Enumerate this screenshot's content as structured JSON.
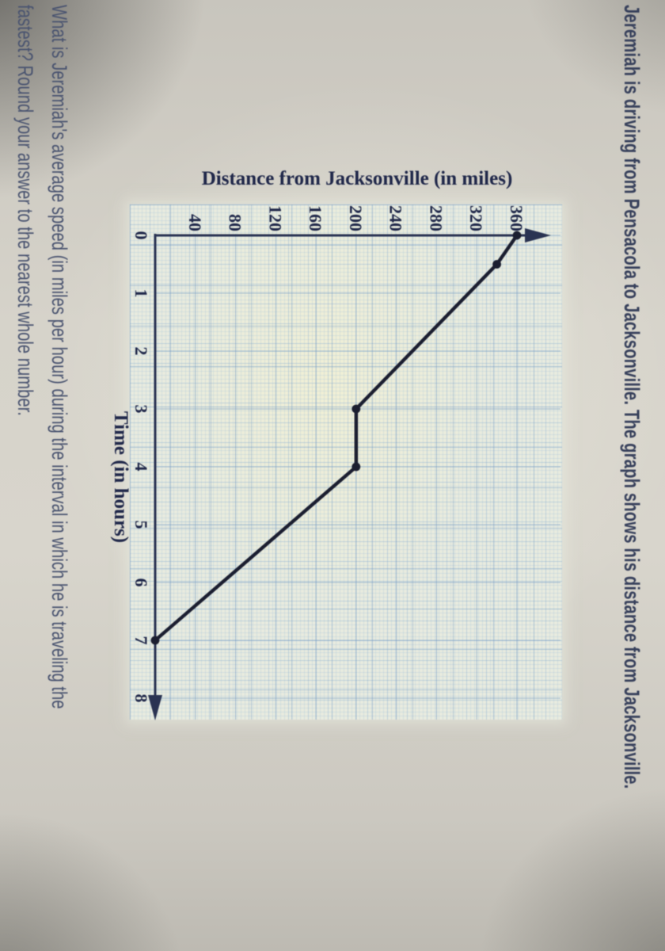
{
  "title": "Jeremiah is driving from Pensacola to Jacksonville. The graph shows his distance from Jacksonville.",
  "question": {
    "line1": "What is Jeremiah's average speed (in miles per hour) during the interval in which he is traveling the",
    "line2": "fastest? Round your answer to the nearest whole number."
  },
  "chart_data": {
    "type": "line",
    "title": "Distance from Jacksonville (in miles)",
    "ylabel": "Distance from Jacksonville (in miles)",
    "xlabel": "Time (in hours)",
    "points": [
      [
        0,
        360
      ],
      [
        0.5,
        340
      ],
      [
        3,
        200
      ],
      [
        4,
        200
      ],
      [
        7,
        0
      ]
    ],
    "x_ticks": [
      0,
      1,
      2,
      3,
      4,
      5,
      6,
      7,
      8
    ],
    "y_ticks": [
      0,
      40,
      80,
      120,
      160,
      200,
      240,
      280,
      320,
      360
    ],
    "x_tick_step": 1,
    "y_tick_step": 40,
    "xlim": [
      0,
      8.4
    ],
    "ylim": [
      0,
      400
    ],
    "grid": "fine square graph paper with stronger lines, light blue",
    "legend": "none",
    "marker": "filled dots at each data point",
    "axis_arrows": "arrow at top of y-axis and right end of x-axis"
  },
  "colors": {
    "background": "#d2cfc6",
    "paper": "#e8ebdf",
    "grid_strong": "#789ec6",
    "line": "#1b1e30",
    "axis": "#2a3352",
    "title_text": "#38415c",
    "question_text": "#4a5470",
    "label_text": "#20284a"
  }
}
